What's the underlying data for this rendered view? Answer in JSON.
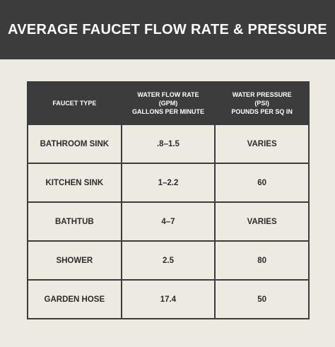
{
  "header": {
    "title": "AVERAGE FAUCET FLOW RATE & PRESSURE"
  },
  "table": {
    "columns": [
      [
        "FAUCET TYPE"
      ],
      [
        "WATER FLOW RATE",
        "(GPM)",
        "GALLONS PER MINUTE"
      ],
      [
        "WATER PRESSURE",
        "(PSI)",
        "POUNDS PER SQ IN"
      ]
    ],
    "rows": [
      [
        "BATHROOM SINK",
        ".8–1.5",
        "VARIES"
      ],
      [
        "KITCHEN SINK",
        "1–2.2",
        "60"
      ],
      [
        "BATHTUB",
        "4–7",
        "VARIES"
      ],
      [
        "SHOWER",
        "2.5",
        "80"
      ],
      [
        "GARDEN HOSE",
        "17.4",
        "50"
      ]
    ]
  }
}
